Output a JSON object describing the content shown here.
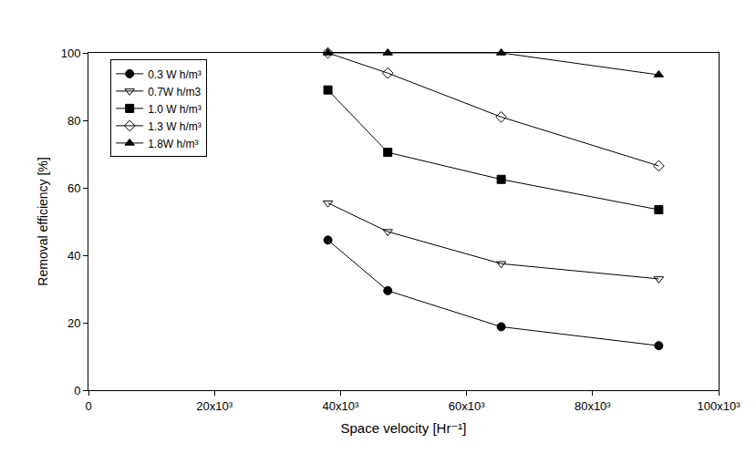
{
  "chart_data": {
    "type": "line",
    "x_label": "Space velocity [Hr⁻¹]",
    "y_label": "Removal efficiency [%]",
    "x": [
      38000,
      47500,
      65500,
      90500
    ],
    "series": [
      {
        "name": "0.3 W h/m³",
        "color": "#000000",
        "marker": "circle",
        "line_style": "solid",
        "values": [
          44.5,
          29.5,
          18.8,
          13.2
        ]
      },
      {
        "name": "0.7W h/m3",
        "color": "#000000",
        "marker": "triangle-down-open",
        "line_style": "solid",
        "values": [
          55.5,
          47,
          37.5,
          33
        ]
      },
      {
        "name": "1.0 W h/m³",
        "color": "#000000",
        "marker": "square",
        "line_style": "solid",
        "values": [
          89,
          70.5,
          62.5,
          53.5
        ]
      },
      {
        "name": "1.3 W h/m³",
        "color": "#000000",
        "marker": "diamond-open",
        "line_style": "solid",
        "values": [
          100,
          94,
          81,
          66.5
        ]
      },
      {
        "name": "1.8W h/m³",
        "color": "#000000",
        "marker": "triangle-up",
        "line_style": "solid",
        "values": [
          100,
          100,
          100,
          93.5
        ]
      }
    ],
    "xlim": [
      0,
      100000
    ],
    "xticks": [
      0,
      {
        "value": 20000,
        "label": "20x10³"
      },
      {
        "value": 40000,
        "label": "40x10³"
      },
      {
        "value": 60000,
        "label": "60x10³"
      },
      {
        "value": 80000,
        "label": "80x10³"
      },
      {
        "value": 100000,
        "label": "100x10³"
      }
    ],
    "ylim": [
      0,
      100
    ],
    "yticks": [
      0,
      20,
      40,
      60,
      80,
      100
    ],
    "grid": false,
    "legend": "top-left"
  }
}
